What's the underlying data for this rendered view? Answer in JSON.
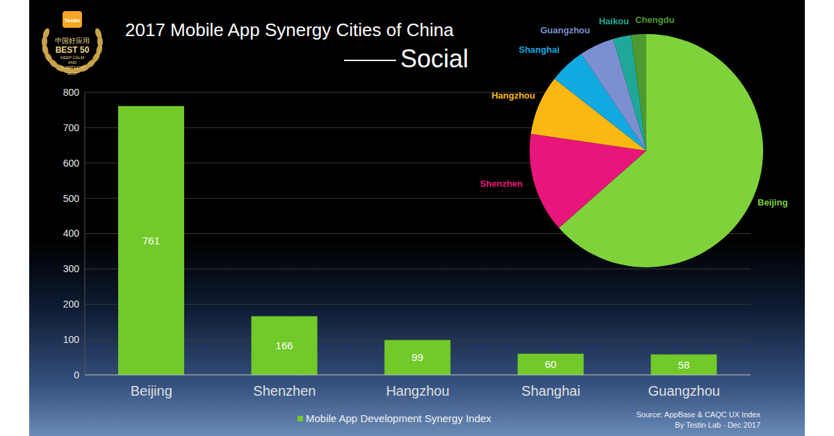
{
  "chart_data": [
    {
      "type": "bar",
      "title": "2017 Mobile App Synergy Cities of China",
      "subtitle": "Social",
      "categories": [
        "Beijing",
        "Shenzhen",
        "Hangzhou",
        "Shanghai",
        "Guangzhou"
      ],
      "series": [
        {
          "name": "Mobile App Development Synergy Index",
          "color": "#72c92a",
          "values": [
            761,
            166,
            99,
            60,
            58
          ]
        }
      ],
      "ylim": [
        0,
        800
      ],
      "yticks": [
        0,
        100,
        200,
        300,
        400,
        500,
        600,
        700,
        800
      ],
      "grid": true,
      "data_labels": true,
      "legend": "bottom",
      "annotations": [
        "Source: AppBase & CAQC UX Index",
        "By Testin Lab · Dec 2017"
      ]
    },
    {
      "type": "pie",
      "categories": [
        "Beijing",
        "Shenzhen",
        "Hangzhou",
        "Shanghai",
        "Guangzhou",
        "Haikou",
        "Chengdu"
      ],
      "values": [
        761,
        166,
        99,
        60,
        58,
        30,
        25
      ],
      "colors": [
        "#7ed33a",
        "#e8157a",
        "#fbb813",
        "#12a9e0",
        "#7c8fd0",
        "#1fa89a",
        "#4f9a30"
      ]
    }
  ],
  "badge": {
    "logo": "Testin",
    "lines": [
      "中国好应用",
      "BEST 50",
      "KEEP CALM",
      "AND",
      "CARRY ON",
      "2017"
    ]
  }
}
